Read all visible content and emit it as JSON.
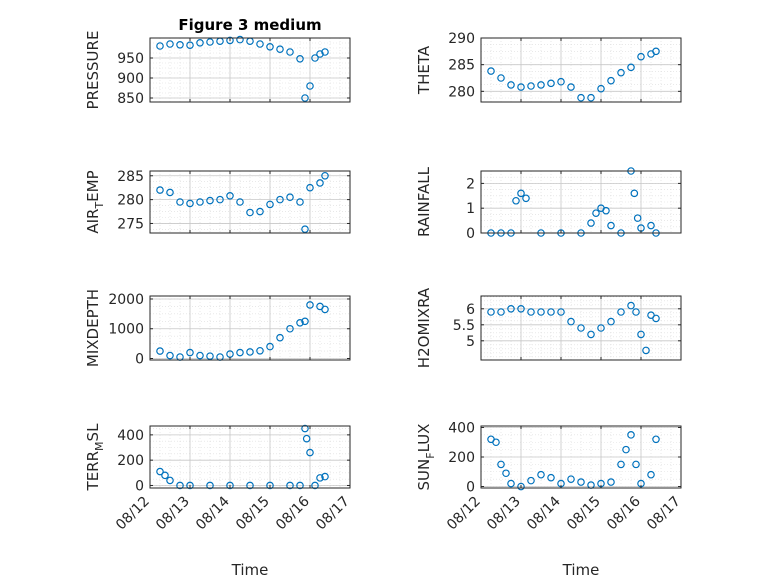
{
  "title": "Figure 3 medium",
  "xlabel": "Time",
  "x_ticks": [
    "08/12",
    "08/13",
    "08/14",
    "08/15",
    "08/16",
    "08/17"
  ],
  "marker_color": "#0072BD",
  "chart_data": [
    {
      "type": "scatter",
      "ylabel": "PRESSURE",
      "ylabel_parts": [
        "PRESSURE",
        "",
        ""
      ],
      "ylim": [
        840,
        1000
      ],
      "yticks": [
        850,
        900,
        950
      ],
      "grid": "major+minor",
      "marker": "circle",
      "x": [
        "08/12 06h",
        "08/12 12h",
        "08/12 18h",
        "08/13 00h",
        "08/13 06h",
        "08/13 12h",
        "08/13 18h",
        "08/14 00h",
        "08/14 06h",
        "08/14 12h",
        "08/14 18h",
        "08/15 00h",
        "08/15 06h",
        "08/15 12h",
        "08/15 18h",
        "08/15 21h",
        "08/16 00h",
        "08/16 03h",
        "08/16 06h",
        "08/16 09h"
      ],
      "y": [
        980,
        985,
        983,
        982,
        988,
        990,
        992,
        994,
        996,
        992,
        985,
        978,
        972,
        965,
        948,
        850,
        880,
        950,
        960,
        965
      ]
    },
    {
      "type": "scatter",
      "ylabel": "THETA",
      "ylabel_parts": [
        "THETA",
        "",
        ""
      ],
      "ylim": [
        278,
        290
      ],
      "yticks": [
        280,
        285,
        290
      ],
      "grid": "major+minor",
      "marker": "circle",
      "x": [
        "08/12 06h",
        "08/12 12h",
        "08/12 18h",
        "08/13 00h",
        "08/13 06h",
        "08/13 12h",
        "08/13 18h",
        "08/14 00h",
        "08/14 06h",
        "08/14 12h",
        "08/14 18h",
        "08/15 00h",
        "08/15 06h",
        "08/15 12h",
        "08/15 18h",
        "08/16 00h",
        "08/16 06h",
        "08/16 09h"
      ],
      "y": [
        283.8,
        282.5,
        281.2,
        280.8,
        281.0,
        281.2,
        281.5,
        281.8,
        280.8,
        278.8,
        278.8,
        280.5,
        282.0,
        283.5,
        284.5,
        286.5,
        287.0,
        287.5
      ]
    },
    {
      "type": "scatter",
      "ylabel": "AIR_TEMP",
      "ylabel_parts": [
        "AIR",
        "T",
        "EMP"
      ],
      "ylim": [
        273,
        286
      ],
      "yticks": [
        275,
        280,
        285
      ],
      "grid": "major+minor",
      "marker": "circle",
      "x": [
        "08/12 06h",
        "08/12 12h",
        "08/12 18h",
        "08/13 00h",
        "08/13 06h",
        "08/13 12h",
        "08/13 18h",
        "08/14 00h",
        "08/14 06h",
        "08/14 12h",
        "08/14 18h",
        "08/15 00h",
        "08/15 06h",
        "08/15 12h",
        "08/15 18h",
        "08/15 21h",
        "08/16 00h",
        "08/16 06h",
        "08/16 09h"
      ],
      "y": [
        282.0,
        281.5,
        279.5,
        279.2,
        279.5,
        279.8,
        280.0,
        280.8,
        279.5,
        277.3,
        277.5,
        279.0,
        280.0,
        280.5,
        279.5,
        273.8,
        282.5,
        283.5,
        285.0
      ]
    },
    {
      "type": "scatter",
      "ylabel": "RAINFALL",
      "ylabel_parts": [
        "RAINFALL",
        "",
        ""
      ],
      "ylim": [
        0,
        2.5
      ],
      "yticks": [
        0,
        1,
        2
      ],
      "grid": "major+minor",
      "marker": "circle",
      "x": [
        "08/12 06h",
        "08/12 12h",
        "08/12 18h",
        "08/12 21h",
        "08/13 00h",
        "08/13 03h",
        "08/13 12h",
        "08/14 00h",
        "08/14 12h",
        "08/14 18h",
        "08/14 21h",
        "08/15 00h",
        "08/15 03h",
        "08/15 06h",
        "08/15 12h",
        "08/15 18h",
        "08/15 20h",
        "08/15 22h",
        "08/16 00h",
        "08/16 06h",
        "08/16 09h"
      ],
      "y": [
        0,
        0,
        0,
        1.3,
        1.6,
        1.4,
        0,
        0,
        0,
        0.4,
        0.8,
        1.0,
        0.9,
        0.3,
        0,
        2.5,
        1.6,
        0.6,
        0.2,
        0.3,
        0
      ]
    },
    {
      "type": "scatter",
      "ylabel": "MIXDEPTH",
      "ylabel_parts": [
        "MIXDEPTH",
        "",
        ""
      ],
      "ylim": [
        -50,
        2100
      ],
      "yticks": [
        0,
        1000,
        2000
      ],
      "grid": "major+minor",
      "marker": "circle",
      "x": [
        "08/12 06h",
        "08/12 12h",
        "08/12 18h",
        "08/13 00h",
        "08/13 06h",
        "08/13 12h",
        "08/13 18h",
        "08/14 00h",
        "08/14 06h",
        "08/14 12h",
        "08/14 18h",
        "08/15 00h",
        "08/15 06h",
        "08/15 12h",
        "08/15 18h",
        "08/15 21h",
        "08/16 00h",
        "08/16 06h",
        "08/16 09h"
      ],
      "y": [
        250,
        100,
        50,
        200,
        100,
        80,
        50,
        150,
        200,
        220,
        260,
        400,
        700,
        1000,
        1200,
        1250,
        1800,
        1750,
        1650
      ]
    },
    {
      "type": "scatter",
      "ylabel": "H2OMIXRA",
      "ylabel_parts": [
        "H2OMIXRA",
        "",
        ""
      ],
      "ylim": [
        4.4,
        6.4
      ],
      "yticks": [
        5,
        5.5,
        6
      ],
      "grid": "major+minor",
      "marker": "circle",
      "x": [
        "08/12 06h",
        "08/12 12h",
        "08/12 18h",
        "08/13 00h",
        "08/13 06h",
        "08/13 12h",
        "08/13 18h",
        "08/14 00h",
        "08/14 06h",
        "08/14 12h",
        "08/14 18h",
        "08/15 00h",
        "08/15 06h",
        "08/15 12h",
        "08/15 18h",
        "08/15 21h",
        "08/16 00h",
        "08/16 03h",
        "08/16 06h",
        "08/16 09h"
      ],
      "y": [
        5.9,
        5.9,
        6.0,
        6.0,
        5.9,
        5.9,
        5.9,
        5.9,
        5.6,
        5.4,
        5.2,
        5.4,
        5.6,
        5.9,
        6.1,
        5.9,
        5.2,
        4.7,
        5.8,
        5.7
      ]
    },
    {
      "type": "scatter",
      "ylabel": "TERR_MSL",
      "ylabel_parts": [
        "TERR",
        "M",
        "SL"
      ],
      "ylim": [
        -20,
        470
      ],
      "yticks": [
        0,
        200,
        400
      ],
      "grid": "major+minor",
      "marker": "circle",
      "x": [
        "08/12 06h",
        "08/12 09h",
        "08/12 12h",
        "08/12 18h",
        "08/13 00h",
        "08/13 12h",
        "08/14 00h",
        "08/14 12h",
        "08/15 00h",
        "08/15 12h",
        "08/15 18h",
        "08/15 21h",
        "08/15 22h",
        "08/16 00h",
        "08/16 03h",
        "08/16 06h",
        "08/16 09h"
      ],
      "y": [
        110,
        80,
        40,
        0,
        0,
        0,
        0,
        0,
        0,
        0,
        0,
        450,
        370,
        260,
        0,
        60,
        70
      ]
    },
    {
      "type": "scatter",
      "ylabel": "SUN_FLUX",
      "ylabel_parts": [
        "SUN",
        "F",
        "LUX"
      ],
      "ylim": [
        -10,
        410
      ],
      "yticks": [
        0,
        200,
        400
      ],
      "grid": "major+minor",
      "marker": "circle",
      "x": [
        "08/12 06h",
        "08/12 09h",
        "08/12 12h",
        "08/12 15h",
        "08/12 18h",
        "08/13 00h",
        "08/13 06h",
        "08/13 12h",
        "08/13 18h",
        "08/14 00h",
        "08/14 06h",
        "08/14 12h",
        "08/14 18h",
        "08/15 00h",
        "08/15 06h",
        "08/15 12h",
        "08/15 15h",
        "08/15 18h",
        "08/15 21h",
        "08/16 00h",
        "08/16 06h",
        "08/16 09h"
      ],
      "y": [
        320,
        300,
        150,
        90,
        20,
        0,
        40,
        80,
        60,
        20,
        50,
        30,
        10,
        20,
        30,
        150,
        250,
        350,
        150,
        20,
        80,
        320
      ]
    }
  ]
}
